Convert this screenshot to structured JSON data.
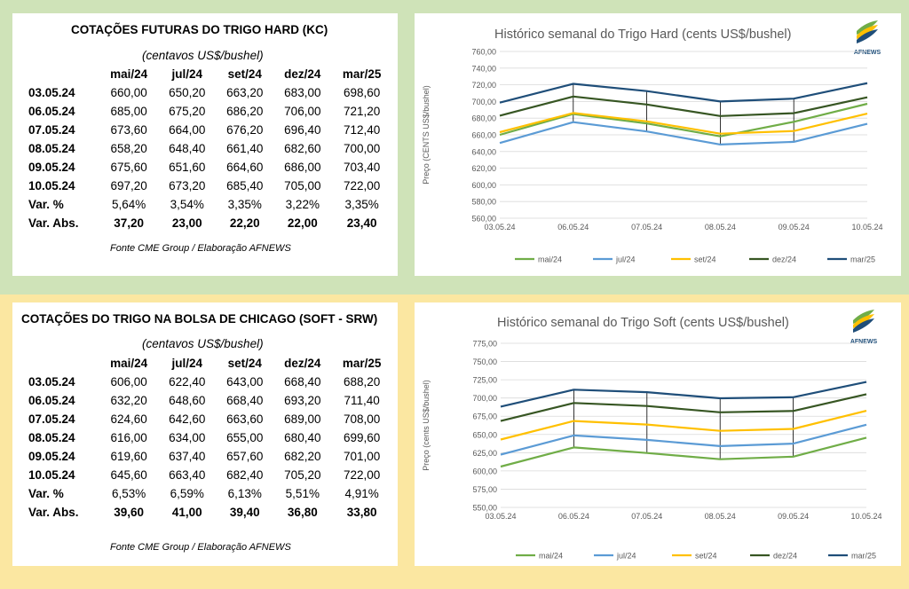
{
  "colors": {
    "band_top": "#cfe3b8",
    "band_bottom": "#fbe7a1",
    "series": [
      "#70ad47",
      "#5b9bd5",
      "#ffc000",
      "#375623",
      "#1f4e79"
    ]
  },
  "logo": {
    "text": "AFNEWS"
  },
  "hard_table": {
    "title": "COTAÇÕES FUTURAS DO TRIGO HARD (KC)",
    "unit": "(centavos US$/bushel)",
    "columns": [
      "mai/24",
      "jul/24",
      "set/24",
      "dez/24",
      "mar/25"
    ],
    "rows": [
      {
        "label": "03.05.24",
        "values": [
          "660,00",
          "650,20",
          "663,20",
          "683,00",
          "698,60"
        ]
      },
      {
        "label": "06.05.24",
        "values": [
          "685,00",
          "675,20",
          "686,20",
          "706,00",
          "721,20"
        ]
      },
      {
        "label": "07.05.24",
        "values": [
          "673,60",
          "664,00",
          "676,20",
          "696,40",
          "712,40"
        ]
      },
      {
        "label": "08.05.24",
        "values": [
          "658,20",
          "648,40",
          "661,40",
          "682,60",
          "700,00"
        ]
      },
      {
        "label": "09.05.24",
        "values": [
          "675,60",
          "651,60",
          "664,60",
          "686,00",
          "703,40"
        ]
      },
      {
        "label": "10.05.24",
        "values": [
          "697,20",
          "673,20",
          "685,40",
          "705,00",
          "722,00"
        ]
      }
    ],
    "var_pct": {
      "label": "Var. %",
      "values": [
        "5,64%",
        "3,54%",
        "3,35%",
        "3,22%",
        "3,35%"
      ]
    },
    "var_abs": {
      "label": "Var. Abs.",
      "values": [
        "37,20",
        "23,00",
        "22,20",
        "22,00",
        "23,40"
      ]
    },
    "source": "Fonte CME Group / Elaboração AFNEWS"
  },
  "soft_table": {
    "title": "COTAÇÕES DO TRIGO NA BOLSA DE CHICAGO (SOFT - SRW)",
    "unit": "(centavos US$/bushel)",
    "columns": [
      "mai/24",
      "jul/24",
      "set/24",
      "dez/24",
      "mar/25"
    ],
    "rows": [
      {
        "label": "03.05.24",
        "values": [
          "606,00",
          "622,40",
          "643,00",
          "668,40",
          "688,20"
        ]
      },
      {
        "label": "06.05.24",
        "values": [
          "632,20",
          "648,60",
          "668,40",
          "693,20",
          "711,40"
        ]
      },
      {
        "label": "07.05.24",
        "values": [
          "624,60",
          "642,60",
          "663,60",
          "689,00",
          "708,00"
        ]
      },
      {
        "label": "08.05.24",
        "values": [
          "616,00",
          "634,00",
          "655,00",
          "680,40",
          "699,60"
        ]
      },
      {
        "label": "09.05.24",
        "values": [
          "619,60",
          "637,40",
          "657,60",
          "682,20",
          "701,00"
        ]
      },
      {
        "label": "10.05.24",
        "values": [
          "645,60",
          "663,40",
          "682,40",
          "705,20",
          "722,00"
        ]
      }
    ],
    "var_pct": {
      "label": "Var. %",
      "values": [
        "6,53%",
        "6,59%",
        "6,13%",
        "5,51%",
        "4,91%"
      ]
    },
    "var_abs": {
      "label": "Var. Abs.",
      "values": [
        "39,60",
        "41,00",
        "39,40",
        "36,80",
        "33,80"
      ]
    },
    "source": "Fonte CME Group / Elaboração AFNEWS"
  },
  "chart_data": [
    {
      "type": "line",
      "title": "Histórico semanal do Trigo Hard (cents US$/bushel)",
      "xlabel": "",
      "ylabel": "Preço (CENTS US$/bushel)",
      "categories": [
        "03.05.24",
        "06.05.24",
        "07.05.24",
        "08.05.24",
        "09.05.24",
        "10.05.24"
      ],
      "ylim": [
        560,
        760
      ],
      "yticks": [
        560,
        580,
        600,
        620,
        640,
        660,
        680,
        700,
        720,
        740,
        760
      ],
      "ytick_labels": [
        "560,00",
        "580,00",
        "600,00",
        "620,00",
        "640,00",
        "660,00",
        "680,00",
        "700,00",
        "720,00",
        "740,00",
        "760,00"
      ],
      "grid": true,
      "legend": "bottom",
      "series": [
        {
          "name": "mai/24",
          "values": [
            660.0,
            685.0,
            673.6,
            658.2,
            675.6,
            697.2
          ]
        },
        {
          "name": "jul/24",
          "values": [
            650.2,
            675.2,
            664.0,
            648.4,
            651.6,
            673.2
          ]
        },
        {
          "name": "set/24",
          "values": [
            663.2,
            686.2,
            676.2,
            661.4,
            664.6,
            685.4
          ]
        },
        {
          "name": "dez/24",
          "values": [
            683.0,
            706.0,
            696.4,
            682.6,
            686.0,
            705.0
          ]
        },
        {
          "name": "mar/25",
          "values": [
            698.6,
            721.2,
            712.4,
            700.0,
            703.4,
            722.0
          ]
        }
      ]
    },
    {
      "type": "line",
      "title": "Histórico semanal do Trigo Soft (cents US$/bushel)",
      "xlabel": "",
      "ylabel": "Preço (cents US$/bushel)",
      "categories": [
        "03.05.24",
        "06.05.24",
        "07.05.24",
        "08.05.24",
        "09.05.24",
        "10.05.24"
      ],
      "ylim": [
        550,
        775
      ],
      "yticks": [
        550,
        575,
        600,
        625,
        650,
        675,
        700,
        725,
        750,
        775
      ],
      "ytick_labels": [
        "550,00",
        "575,00",
        "600,00",
        "625,00",
        "650,00",
        "675,00",
        "700,00",
        "725,00",
        "750,00",
        "775,00"
      ],
      "grid": true,
      "legend": "bottom",
      "series": [
        {
          "name": "mai/24",
          "values": [
            606.0,
            632.2,
            624.6,
            616.0,
            619.6,
            645.6
          ]
        },
        {
          "name": "jul/24",
          "values": [
            622.4,
            648.6,
            642.6,
            634.0,
            637.4,
            663.4
          ]
        },
        {
          "name": "set/24",
          "values": [
            643.0,
            668.4,
            663.6,
            655.0,
            657.6,
            682.4
          ]
        },
        {
          "name": "dez/24",
          "values": [
            668.4,
            693.2,
            689.0,
            680.4,
            682.2,
            705.2
          ]
        },
        {
          "name": "mar/25",
          "values": [
            688.2,
            711.4,
            708.0,
            699.6,
            701.0,
            722.0
          ]
        }
      ]
    }
  ]
}
